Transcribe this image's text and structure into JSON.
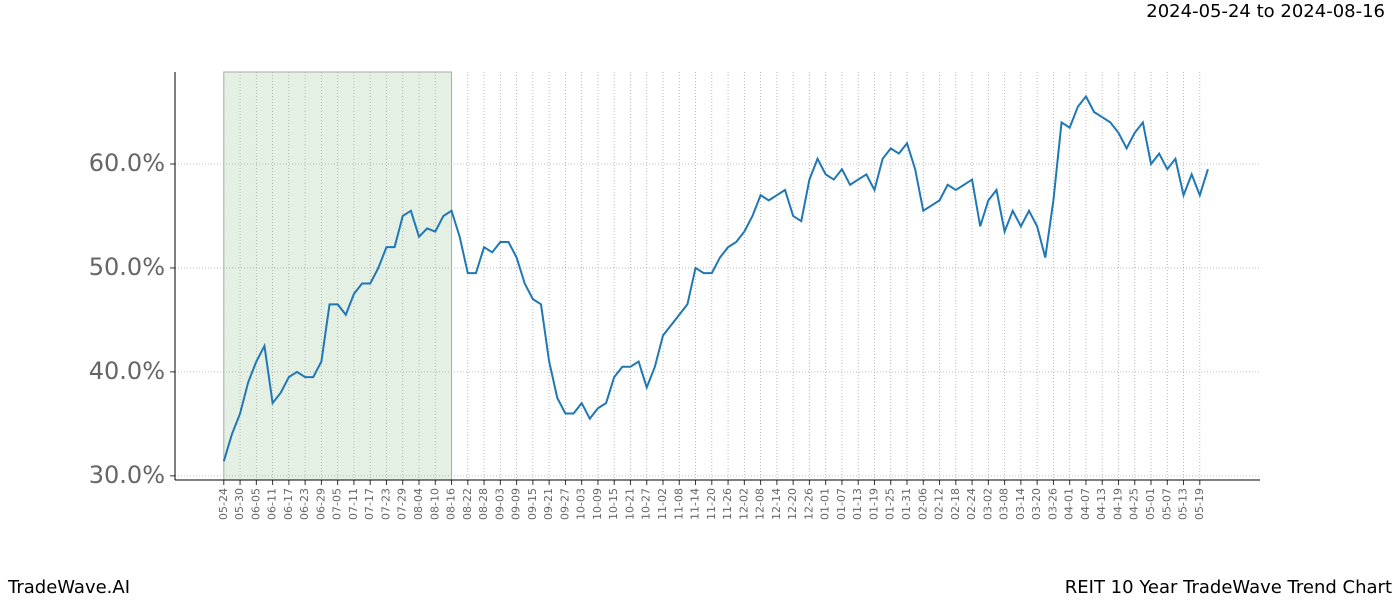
{
  "chart_data": {
    "type": "line",
    "title": "REIT 10 Year TradeWave Trend Chart",
    "date_range": "2024-05-24 to 2024-08-16",
    "brand": "TradeWave.AI",
    "color": "#1f77b4",
    "highlight": {
      "from": 0,
      "to": 28,
      "color": "#e5f0e5"
    },
    "values": [
      31.4,
      34,
      36,
      39,
      41,
      42.5,
      37,
      38,
      39.5,
      40,
      39.5,
      39.5,
      41,
      46.5,
      46.5,
      45.5,
      47.5,
      48.5,
      48.5,
      50,
      52,
      52,
      55,
      55.5,
      53,
      53.8,
      53.5,
      55,
      55.5,
      53,
      49.5,
      49.5,
      52,
      51.5,
      52.5,
      52.5,
      51,
      48.5,
      47,
      46.5,
      41,
      37.5,
      36,
      36,
      37,
      35.5,
      36.5,
      37,
      39.5,
      40.5,
      40.5,
      41,
      38.5,
      40.5,
      43.5,
      44.5,
      45.5,
      46.5,
      50,
      49.5,
      49.5,
      51,
      52,
      52.5,
      53.5,
      55,
      57,
      56.5,
      57,
      57.5,
      55,
      54.5,
      58.5,
      60.5,
      59,
      58.5,
      59.5,
      58,
      58.5,
      59,
      57.5,
      60.5,
      61.5,
      61,
      62,
      59.5,
      55.5,
      56,
      56.5,
      58,
      57.5,
      58,
      58.5,
      54,
      56.5,
      57.5,
      53.5,
      55.5,
      54,
      55.5,
      54,
      51,
      56.5,
      64,
      63.5,
      65.5,
      66.5,
      65,
      64.5,
      64,
      63,
      61.5,
      63,
      64,
      60,
      61,
      59.5,
      60.5,
      57,
      59,
      57,
      59.5
    ],
    "xlim": [
      -6,
      127.4
    ],
    "xticks": [
      {
        "value": 0,
        "label": "05-24"
      },
      {
        "value": 2,
        "label": "05-30"
      },
      {
        "value": 4,
        "label": "06-05"
      },
      {
        "value": 6,
        "label": "06-11"
      },
      {
        "value": 8,
        "label": "06-17"
      },
      {
        "value": 10,
        "label": "06-23"
      },
      {
        "value": 12,
        "label": "06-29"
      },
      {
        "value": 14,
        "label": "07-05"
      },
      {
        "value": 16,
        "label": "07-11"
      },
      {
        "value": 18,
        "label": "07-17"
      },
      {
        "value": 20,
        "label": "07-23"
      },
      {
        "value": 22,
        "label": "07-29"
      },
      {
        "value": 24,
        "label": "08-04"
      },
      {
        "value": 26,
        "label": "08-10"
      },
      {
        "value": 28,
        "label": "08-16"
      },
      {
        "value": 30,
        "label": "08-22"
      },
      {
        "value": 32,
        "label": "08-28"
      },
      {
        "value": 34,
        "label": "09-03"
      },
      {
        "value": 36,
        "label": "09-09"
      },
      {
        "value": 38,
        "label": "09-15"
      },
      {
        "value": 40,
        "label": "09-21"
      },
      {
        "value": 42,
        "label": "09-27"
      },
      {
        "value": 44,
        "label": "10-03"
      },
      {
        "value": 46,
        "label": "10-09"
      },
      {
        "value": 48,
        "label": "10-15"
      },
      {
        "value": 50,
        "label": "10-21"
      },
      {
        "value": 52,
        "label": "10-27"
      },
      {
        "value": 54,
        "label": "11-02"
      },
      {
        "value": 56,
        "label": "11-08"
      },
      {
        "value": 58,
        "label": "11-14"
      },
      {
        "value": 60,
        "label": "11-20"
      },
      {
        "value": 62,
        "label": "11-26"
      },
      {
        "value": 64,
        "label": "12-02"
      },
      {
        "value": 66,
        "label": "12-08"
      },
      {
        "value": 68,
        "label": "12-14"
      },
      {
        "value": 70,
        "label": "12-20"
      },
      {
        "value": 72,
        "label": "12-26"
      },
      {
        "value": 74,
        "label": "01-01"
      },
      {
        "value": 76,
        "label": "01-07"
      },
      {
        "value": 78,
        "label": "01-13"
      },
      {
        "value": 80,
        "label": "01-19"
      },
      {
        "value": 82,
        "label": "01-25"
      },
      {
        "value": 84,
        "label": "01-31"
      },
      {
        "value": 86,
        "label": "02-06"
      },
      {
        "value": 88,
        "label": "02-12"
      },
      {
        "value": 90,
        "label": "02-18"
      },
      {
        "value": 92,
        "label": "02-24"
      },
      {
        "value": 94,
        "label": "03-02"
      },
      {
        "value": 96,
        "label": "03-08"
      },
      {
        "value": 98,
        "label": "03-14"
      },
      {
        "value": 100,
        "label": "03-20"
      },
      {
        "value": 102,
        "label": "03-26"
      },
      {
        "value": 104,
        "label": "04-01"
      },
      {
        "value": 106,
        "label": "04-07"
      },
      {
        "value": 108,
        "label": "04-13"
      },
      {
        "value": 110,
        "label": "04-19"
      },
      {
        "value": 112,
        "label": "04-25"
      },
      {
        "value": 114,
        "label": "05-01"
      },
      {
        "value": 116,
        "label": "05-07"
      },
      {
        "value": 118,
        "label": "05-13"
      },
      {
        "value": 120,
        "label": "05-19"
      }
    ],
    "ylim": [
      29.6,
      68.85
    ],
    "yticks": [
      {
        "value": 30,
        "label": "30.0%"
      },
      {
        "value": 40,
        "label": "40.0%"
      },
      {
        "value": 50,
        "label": "50.0%"
      },
      {
        "value": 60,
        "label": "60.0%"
      }
    ],
    "grid": true
  }
}
